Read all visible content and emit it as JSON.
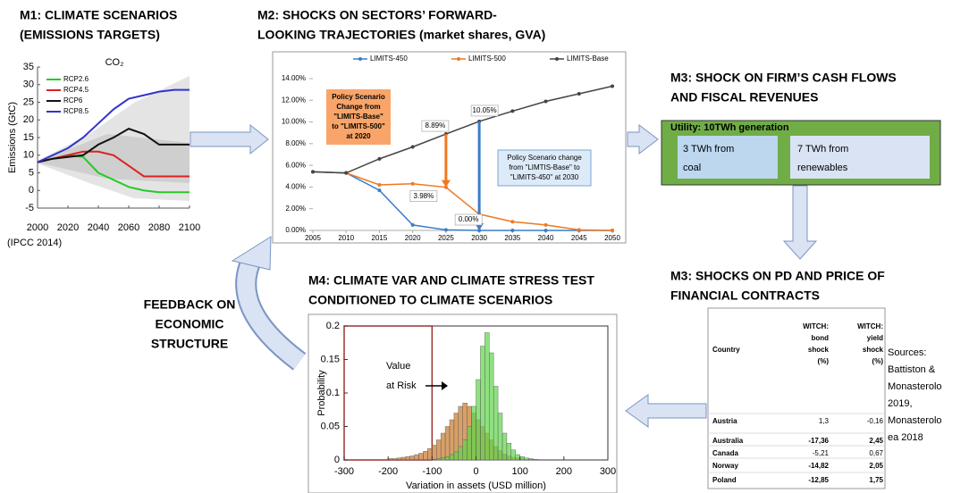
{
  "m1": {
    "title": [
      "M1: CLIMATE SCENARIOS",
      "(EMISSIONS TARGETS)"
    ],
    "source": "(IPCC 2014)",
    "chart": {
      "type": "line",
      "title": "CO₂",
      "ylabel": "Emissions (GtC)",
      "xlim": [
        2000,
        2100
      ],
      "ylim": [
        -5,
        35
      ],
      "xticks": [
        2000,
        2020,
        2040,
        2060,
        2080,
        2100
      ],
      "yticks": [
        -5,
        0,
        5,
        10,
        15,
        20,
        25,
        30,
        35
      ],
      "x": [
        2000,
        2010,
        2020,
        2030,
        2040,
        2050,
        2060,
        2070,
        2080,
        2090,
        2100
      ],
      "series": [
        {
          "name": "RCP2.6",
          "color": "#22cc22",
          "values": [
            8,
            9,
            10,
            9.5,
            5,
            3,
            1,
            0,
            -0.5,
            -0.5,
            -0.5
          ]
        },
        {
          "name": "RCP4.5",
          "color": "#dd2222",
          "values": [
            8,
            9,
            10,
            11,
            11,
            10,
            7,
            4,
            4,
            4,
            4
          ]
        },
        {
          "name": "RCP6",
          "color": "#111111",
          "values": [
            8,
            9,
            9.5,
            10,
            13,
            15,
            17.5,
            16,
            13,
            13,
            13
          ]
        },
        {
          "name": "RCP8.5",
          "color": "#3333cc",
          "values": [
            8,
            10,
            12,
            15,
            19,
            23,
            26,
            27,
            28,
            28.5,
            28.5
          ]
        }
      ]
    }
  },
  "m2": {
    "title": [
      "M2: SHOCKS ON SECTORS’ FORWARD-",
      "LOOKING TRAJECTORIES (market shares, GVA)"
    ],
    "chart": {
      "type": "line",
      "xlim": [
        2005,
        2050
      ],
      "ylim": [
        0,
        14
      ],
      "xticks": [
        2005,
        2010,
        2015,
        2020,
        2025,
        2030,
        2035,
        2040,
        2045,
        2050
      ],
      "yticks": [
        {
          "value": 0,
          "label": "0.00%"
        },
        {
          "value": 2,
          "label": "2.00%"
        },
        {
          "value": 4,
          "label": "4.00%"
        },
        {
          "value": 6,
          "label": "6.00%"
        },
        {
          "value": 8,
          "label": "8.00%"
        },
        {
          "value": 10,
          "label": "10.00%"
        },
        {
          "value": 12,
          "label": "12.00%"
        },
        {
          "value": 14,
          "label": "14.00%"
        }
      ],
      "x": [
        2005,
        2010,
        2015,
        2020,
        2025,
        2030,
        2035,
        2040,
        2045,
        2050
      ],
      "series": [
        {
          "name": "LIMITS-450",
          "color": "#3a7dc9",
          "values": [
            5.4,
            5.3,
            3.7,
            0.5,
            0.05,
            0,
            0,
            0,
            0,
            0
          ]
        },
        {
          "name": "LIMITS-500",
          "color": "#f07820",
          "values": [
            5.4,
            5.3,
            4.2,
            4.3,
            3.98,
            1.5,
            0.8,
            0.5,
            0.05,
            0
          ]
        },
        {
          "name": "LIMITS-Base",
          "color": "#444444",
          "values": [
            5.4,
            5.3,
            6.6,
            7.7,
            8.89,
            10.05,
            11,
            11.9,
            12.6,
            13.3
          ]
        }
      ],
      "annotations": [
        "8.89%",
        "10.05%",
        "3.98%",
        "0.00%"
      ],
      "box500": [
        "Policy Scenario",
        "Change from",
        "\"LIMITS-Base\"",
        "to \"LIMITS-500\"",
        "at 2020"
      ],
      "box450": [
        "Policy Scenario change",
        "from \"LIMTIS-Base\" to",
        "\"LIMITS-450\" at 2030"
      ]
    }
  },
  "m3a": {
    "title": [
      "M3: SHOCK ON FIRM’S CASH FLOWS",
      "AND FISCAL REVENUES"
    ],
    "box": "Utility: 10TWh generation",
    "left": [
      "3 TWh from",
      "coal"
    ],
    "right": [
      "7 TWh from",
      "renewables"
    ]
  },
  "m3b": {
    "title": [
      "M3: SHOCKS ON PD AND PRICE OF",
      "FINANCIAL CONTRACTS"
    ],
    "table": {
      "header": [
        [
          "Country"
        ],
        [
          "WITCH:",
          "bond",
          "shock",
          "(%)"
        ],
        [
          "WITCH:",
          "yield",
          "shock",
          "(%)"
        ]
      ],
      "rows": [
        [
          "Austria",
          "1,3",
          "-0,16"
        ],
        [
          "Australia",
          "-17,36",
          "2,45"
        ],
        [
          "Canada",
          "-5,21",
          "0,67"
        ],
        [
          "Norway",
          "-14,82",
          "2,05"
        ],
        [
          "Poland",
          "-12,85",
          "1,75"
        ]
      ]
    },
    "sources": [
      "Sources:",
      "Battiston &",
      "Monasterolo",
      "2019,",
      "Monasterolo",
      "ea 2018"
    ]
  },
  "m4": {
    "title": [
      "M4: CLIMATE VAR AND CLIMATE STRESS TEST",
      "CONDITIONED TO CLIMATE SCENARIOS"
    ],
    "chart": {
      "type": "histogram",
      "xlabel": "Variation in assets (USD million)",
      "ylabel": "Probability",
      "xlim": [
        -300,
        300
      ],
      "ylim": [
        0,
        0.2
      ],
      "xticks": [
        -300,
        -200,
        -100,
        0,
        100,
        200,
        300
      ],
      "yticks": [
        0,
        0.05,
        0.1,
        0.15,
        0.2
      ],
      "bins": [
        -200,
        -190,
        -180,
        -170,
        -160,
        -150,
        -140,
        -130,
        -120,
        -110,
        -100,
        -90,
        -80,
        -70,
        -60,
        -50,
        -40,
        -30,
        -20,
        -10,
        0,
        10,
        20,
        30,
        40,
        50,
        60,
        70,
        80,
        90,
        100,
        110,
        120,
        130,
        140,
        150
      ],
      "series": [
        {
          "color": "#c8782a",
          "values": [
            0.002,
            0.002,
            0.003,
            0.004,
            0.005,
            0.006,
            0.008,
            0.01,
            0.013,
            0.017,
            0.022,
            0.03,
            0.04,
            0.05,
            0.06,
            0.07,
            0.08,
            0.085,
            0.08,
            0.07,
            0.06,
            0.05,
            0.04,
            0.03,
            0.02,
            0.014,
            0.009,
            0.006,
            0.004,
            0.003,
            0.002,
            0.001,
            0.001,
            0,
            0
          ]
        },
        {
          "color": "#5fd44a",
          "values": [
            0,
            0,
            0,
            0,
            0,
            0,
            0,
            0,
            0,
            0,
            0.001,
            0.002,
            0.003,
            0.005,
            0.008,
            0.012,
            0.02,
            0.03,
            0.05,
            0.08,
            0.12,
            0.17,
            0.19,
            0.16,
            0.11,
            0.07,
            0.04,
            0.025,
            0.015,
            0.008,
            0.005,
            0.003,
            0.002,
            0.001,
            0
          ]
        }
      ],
      "annotation": [
        "Value",
        "at Risk"
      ]
    }
  },
  "feedback": [
    "FEEDBACK ON",
    "ECONOMIC",
    "STRUCTURE"
  ]
}
